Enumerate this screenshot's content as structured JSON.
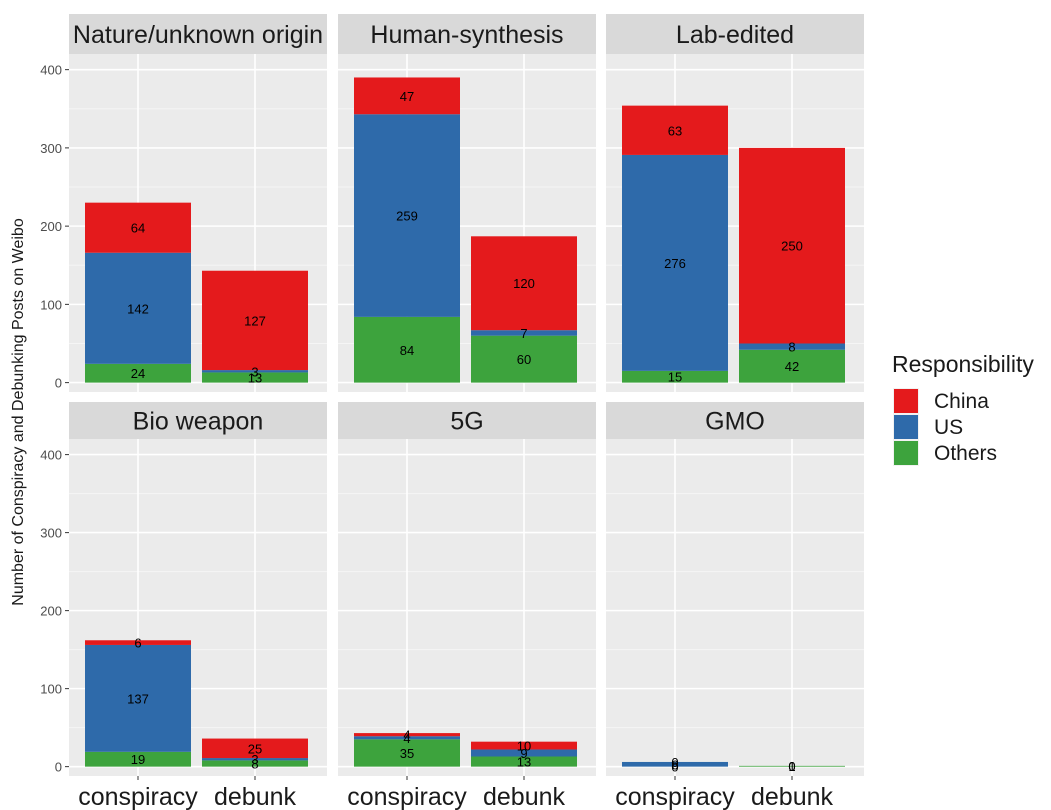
{
  "chart_data": {
    "type": "bar",
    "stacked": true,
    "ylabel": "Number of Conspiracy and Debunking Posts on Weibo",
    "xlabel": "",
    "ylim": [
      0,
      420
    ],
    "y_ticks": [
      0,
      100,
      200,
      300,
      400
    ],
    "categories": [
      "conspiracy",
      "debunk"
    ],
    "grid": true,
    "legend": {
      "title": "Responsibility",
      "placement": "right",
      "items": [
        {
          "name": "China",
          "color": "#E41A1C"
        },
        {
          "name": "US",
          "color": "#2E6AAA"
        },
        {
          "name": "Others",
          "color": "#3DA33D"
        }
      ]
    },
    "panels": [
      {
        "title": "Nature/unknown origin",
        "bars": [
          {
            "category": "conspiracy",
            "China": 64,
            "US": 142,
            "Others": 24
          },
          {
            "category": "debunk",
            "China": 127,
            "US": 3,
            "Others": 13
          }
        ]
      },
      {
        "title": "Human-synthesis",
        "bars": [
          {
            "category": "conspiracy",
            "China": 47,
            "US": 259,
            "Others": 84
          },
          {
            "category": "debunk",
            "China": 120,
            "US": 7,
            "Others": 60
          }
        ]
      },
      {
        "title": "Lab-edited",
        "bars": [
          {
            "category": "conspiracy",
            "China": 63,
            "US": 276,
            "Others": 15
          },
          {
            "category": "debunk",
            "China": 250,
            "US": 8,
            "Others": 42
          }
        ]
      },
      {
        "title": "Bio weapon",
        "bars": [
          {
            "category": "conspiracy",
            "China": 6,
            "US": 137,
            "Others": 19
          },
          {
            "category": "debunk",
            "China": 25,
            "US": 3,
            "Others": 8
          }
        ]
      },
      {
        "title": "5G",
        "bars": [
          {
            "category": "conspiracy",
            "China": 4,
            "US": 4,
            "Others": 35
          },
          {
            "category": "debunk",
            "China": 10,
            "US": 9,
            "Others": 13
          }
        ]
      },
      {
        "title": "GMO",
        "bars": [
          {
            "category": "conspiracy",
            "China": 0,
            "US": 6,
            "Others": 0
          },
          {
            "category": "debunk",
            "China": 0,
            "US": 0,
            "Others": 1
          }
        ]
      }
    ]
  }
}
